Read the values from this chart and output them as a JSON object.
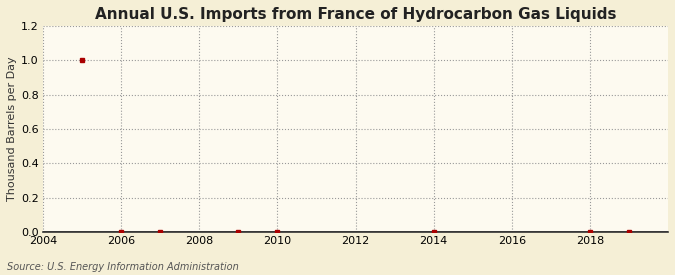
{
  "title": "Annual U.S. Imports from France of Hydrocarbon Gas Liquids",
  "ylabel": "Thousand Barrels per Day",
  "source": "Source: U.S. Energy Information Administration",
  "background_color": "#f5efd6",
  "plot_bg_color": "#fdfaf0",
  "years": [
    2005,
    2006,
    2007,
    2009,
    2010,
    2014,
    2018,
    2019
  ],
  "values": [
    1.0,
    0.0,
    0.0,
    0.0,
    0.0,
    0.0,
    0.0,
    0.0
  ],
  "xmin": 2004,
  "xmax": 2020,
  "ymin": 0.0,
  "ymax": 1.2,
  "yticks": [
    0.0,
    0.2,
    0.4,
    0.6,
    0.8,
    1.0,
    1.2
  ],
  "xticks": [
    2004,
    2006,
    2008,
    2010,
    2012,
    2014,
    2016,
    2018
  ],
  "marker_color": "#aa0000",
  "grid_color": "#999999",
  "title_fontsize": 11,
  "label_fontsize": 8,
  "tick_fontsize": 8,
  "source_fontsize": 7
}
